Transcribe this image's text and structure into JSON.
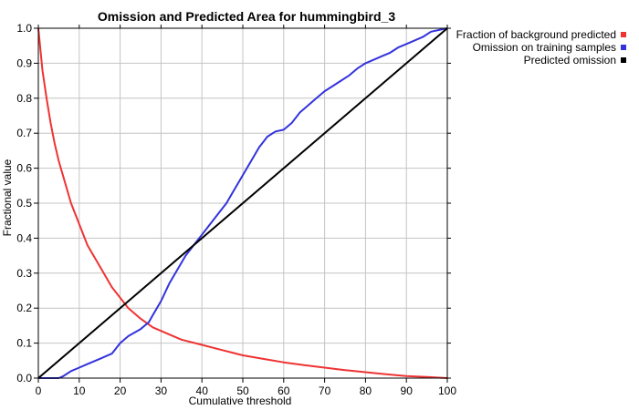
{
  "chart_data": {
    "type": "line",
    "title": "Omission and Predicted Area for hummingbird_3",
    "xlabel": "Cumulative threshold",
    "ylabel": "Fractional value",
    "xlim": [
      0,
      100
    ],
    "ylim": [
      0,
      1
    ],
    "x_ticks": [
      0,
      10,
      20,
      30,
      40,
      50,
      60,
      70,
      80,
      90,
      100
    ],
    "x_tick_labels": [
      "0",
      "10",
      "20",
      "30",
      "40",
      "50",
      "60",
      "70",
      "80",
      "90",
      "100"
    ],
    "y_ticks": [
      0,
      0.1,
      0.2,
      0.3,
      0.4,
      0.5,
      0.6,
      0.7,
      0.8,
      0.9,
      1.0
    ],
    "y_tick_labels": [
      "0.0",
      "0.1",
      "0.2",
      "0.3",
      "0.4",
      "0.5",
      "0.6",
      "0.7",
      "0.8",
      "0.9",
      "1.0"
    ],
    "grid": true,
    "legend_position": "outside-top-right",
    "series": [
      {
        "name": "Fraction of background predicted",
        "color": "#ee3333",
        "x": [
          0,
          1,
          2,
          3,
          4,
          5,
          6,
          8,
          10,
          12,
          15,
          18,
          20,
          22,
          25,
          28,
          30,
          35,
          40,
          45,
          50,
          55,
          60,
          65,
          70,
          75,
          80,
          85,
          90,
          95,
          100
        ],
        "y": [
          1.0,
          0.88,
          0.8,
          0.73,
          0.67,
          0.62,
          0.58,
          0.5,
          0.44,
          0.38,
          0.32,
          0.26,
          0.23,
          0.2,
          0.17,
          0.145,
          0.135,
          0.11,
          0.095,
          0.08,
          0.065,
          0.055,
          0.045,
          0.037,
          0.03,
          0.023,
          0.017,
          0.011,
          0.006,
          0.003,
          0.0
        ]
      },
      {
        "name": "Omission on training samples",
        "color": "#3333dd",
        "x": [
          0,
          2,
          5,
          6,
          8,
          10,
          12,
          15,
          18,
          20,
          22,
          25,
          27,
          28,
          30,
          32,
          34,
          36,
          38,
          40,
          42,
          44,
          46,
          48,
          50,
          52,
          54,
          56,
          58,
          60,
          62,
          64,
          66,
          68,
          70,
          72,
          74,
          76,
          78,
          80,
          82,
          84,
          86,
          88,
          90,
          92,
          94,
          96,
          98,
          100
        ],
        "y": [
          0.0,
          0.0,
          0.0,
          0.005,
          0.02,
          0.03,
          0.04,
          0.055,
          0.07,
          0.1,
          0.12,
          0.14,
          0.16,
          0.18,
          0.22,
          0.27,
          0.31,
          0.35,
          0.38,
          0.41,
          0.44,
          0.47,
          0.5,
          0.54,
          0.58,
          0.62,
          0.66,
          0.69,
          0.705,
          0.71,
          0.73,
          0.76,
          0.78,
          0.8,
          0.82,
          0.835,
          0.85,
          0.865,
          0.885,
          0.9,
          0.91,
          0.92,
          0.93,
          0.945,
          0.955,
          0.965,
          0.975,
          0.99,
          0.995,
          1.0
        ]
      },
      {
        "name": "Predicted omission",
        "color": "#000000",
        "x": [
          0,
          100
        ],
        "y": [
          0.0,
          1.0
        ]
      }
    ]
  }
}
